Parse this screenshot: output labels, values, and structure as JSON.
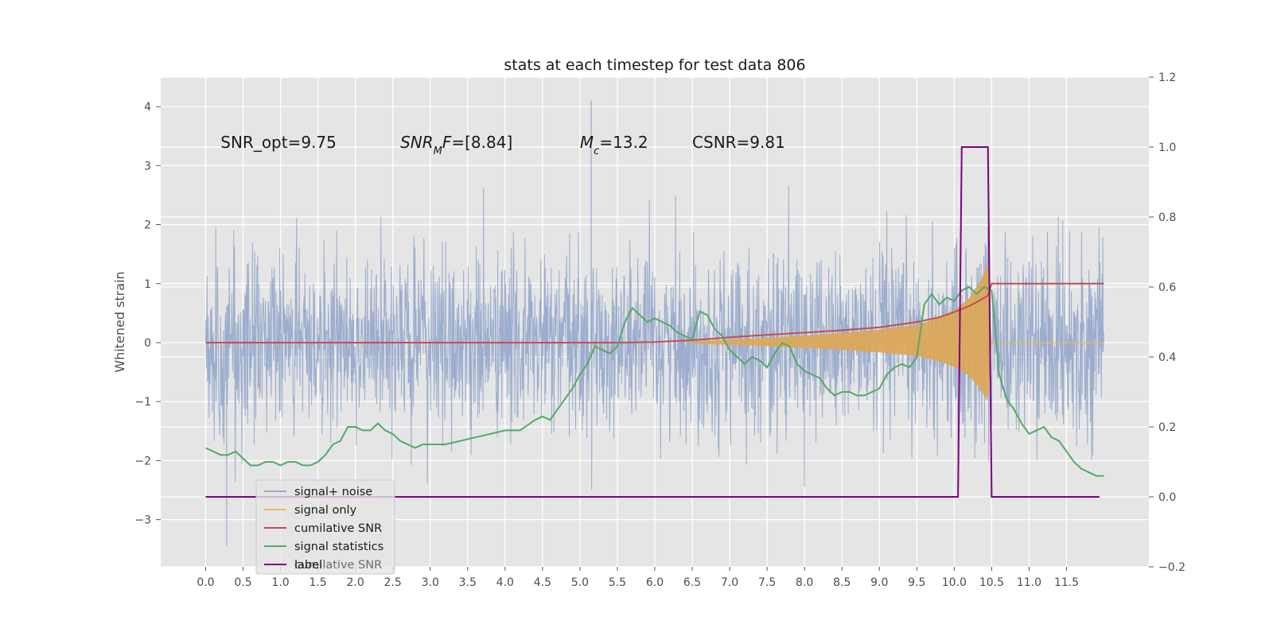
{
  "chart_data": {
    "type": "line",
    "title": "stats at each timestep for test data 806",
    "xlabel": "",
    "ylabel": "Whitened strain",
    "xlim": [
      -0.6,
      12.6
    ],
    "ylim": [
      -3.8,
      4.5
    ],
    "y2lim": [
      -0.2,
      1.2
    ],
    "grid": true,
    "x_ticks": [
      "0.0",
      "0.5",
      "1.0",
      "1.5",
      "2.0",
      "2.5",
      "3.0",
      "3.5",
      "4.0",
      "4.5",
      "5.0",
      "5.5",
      "6.0",
      "6.5",
      "7.0",
      "7.5",
      "8.0",
      "8.5",
      "9.0",
      "9.5",
      "10.0",
      "10.5",
      "11.0",
      "11.5"
    ],
    "y_ticks": [
      "4",
      "3",
      "2",
      "1",
      "0",
      "−1",
      "−2",
      "−3"
    ],
    "y2_ticks": [
      "1.2",
      "1.0",
      "0.8",
      "0.6",
      "0.4",
      "0.2",
      "0.0",
      "−0.2"
    ],
    "annotations": [
      {
        "text": "SNR_opt=9.75",
        "x": 0.2,
        "y": 3.3
      },
      {
        "text": "SNR_MF=[8.84]",
        "x": 2.6,
        "y": 3.3
      },
      {
        "text": "M_c=13.2",
        "x": 5.0,
        "y": 3.3
      },
      {
        "text": "CSNR=9.81",
        "x": 6.5,
        "y": 3.3
      }
    ],
    "legend": {
      "placement": "lower-left",
      "entries": [
        "signal+ noise",
        "signal only",
        "cumilative SNR",
        "signal statistics",
        "label"
      ],
      "ghost_text": "cumilative SNR"
    },
    "series": [
      {
        "name": "signal+ noise",
        "color": "#98aacc",
        "axis": "left",
        "x_range": [
          0.0,
          12.0
        ],
        "noise_envelope_std": 0.75,
        "max": 4.1,
        "min": -3.45
      },
      {
        "name": "signal only",
        "color": "#e8b95a",
        "fill_color": "#dca85a",
        "axis": "left",
        "x": [
          6.5,
          7.0,
          7.5,
          8.0,
          8.5,
          9.0,
          9.5,
          9.8,
          10.0,
          10.2,
          10.35,
          10.45,
          10.5
        ],
        "amplitude": [
          0.02,
          0.05,
          0.08,
          0.12,
          0.16,
          0.22,
          0.3,
          0.42,
          0.55,
          0.75,
          1.05,
          1.35,
          0.0
        ]
      },
      {
        "name": "cumilative SNR",
        "color": "#c44e52",
        "axis": "left",
        "x": [
          0.0,
          5.5,
          6.0,
          6.5,
          7.0,
          7.5,
          8.0,
          8.5,
          9.0,
          9.5,
          9.8,
          10.0,
          10.2,
          10.35,
          10.45,
          10.5,
          12.0
        ],
        "values": [
          0.0,
          0.0,
          0.01,
          0.04,
          0.09,
          0.13,
          0.17,
          0.21,
          0.26,
          0.35,
          0.43,
          0.52,
          0.62,
          0.72,
          0.8,
          1.0,
          1.0
        ]
      },
      {
        "name": "signal statistics",
        "color": "#55a868",
        "axis": "right",
        "x": [
          0.0,
          0.1,
          0.2,
          0.3,
          0.4,
          0.5,
          0.6,
          0.7,
          0.8,
          0.9,
          1.0,
          1.1,
          1.2,
          1.3,
          1.4,
          1.5,
          1.6,
          1.7,
          1.8,
          1.9,
          2.0,
          2.1,
          2.2,
          2.3,
          2.4,
          2.5,
          2.6,
          2.7,
          2.8,
          2.9,
          3.0,
          3.2,
          3.4,
          3.6,
          3.8,
          4.0,
          4.2,
          4.4,
          4.5,
          4.6,
          4.7,
          4.8,
          4.9,
          5.0,
          5.1,
          5.2,
          5.3,
          5.4,
          5.5,
          5.6,
          5.7,
          5.8,
          5.9,
          6.0,
          6.1,
          6.2,
          6.3,
          6.4,
          6.5,
          6.6,
          6.7,
          6.8,
          6.9,
          7.0,
          7.1,
          7.2,
          7.3,
          7.4,
          7.5,
          7.6,
          7.7,
          7.8,
          7.9,
          8.0,
          8.1,
          8.2,
          8.3,
          8.4,
          8.5,
          8.6,
          8.7,
          8.8,
          8.9,
          9.0,
          9.1,
          9.2,
          9.3,
          9.4,
          9.5,
          9.6,
          9.7,
          9.8,
          9.9,
          10.0,
          10.1,
          10.2,
          10.3,
          10.4,
          10.5,
          10.6,
          10.7,
          10.8,
          10.9,
          11.0,
          11.1,
          11.2,
          11.3,
          11.4,
          11.5,
          11.6,
          11.7,
          11.8,
          11.9,
          12.0
        ],
        "values": [
          0.14,
          0.13,
          0.12,
          0.12,
          0.13,
          0.11,
          0.09,
          0.09,
          0.1,
          0.1,
          0.09,
          0.1,
          0.1,
          0.09,
          0.09,
          0.1,
          0.12,
          0.15,
          0.16,
          0.2,
          0.2,
          0.19,
          0.19,
          0.21,
          0.19,
          0.18,
          0.16,
          0.15,
          0.14,
          0.15,
          0.15,
          0.15,
          0.16,
          0.17,
          0.18,
          0.19,
          0.19,
          0.22,
          0.23,
          0.22,
          0.25,
          0.28,
          0.31,
          0.35,
          0.38,
          0.43,
          0.42,
          0.41,
          0.43,
          0.5,
          0.54,
          0.52,
          0.5,
          0.51,
          0.5,
          0.49,
          0.47,
          0.46,
          0.45,
          0.53,
          0.52,
          0.48,
          0.46,
          0.42,
          0.4,
          0.38,
          0.4,
          0.39,
          0.37,
          0.41,
          0.44,
          0.43,
          0.38,
          0.36,
          0.35,
          0.34,
          0.31,
          0.29,
          0.3,
          0.3,
          0.29,
          0.29,
          0.3,
          0.31,
          0.35,
          0.37,
          0.38,
          0.37,
          0.4,
          0.55,
          0.58,
          0.55,
          0.57,
          0.56,
          0.59,
          0.6,
          0.58,
          0.6,
          0.59,
          0.35,
          0.28,
          0.25,
          0.21,
          0.18,
          0.19,
          0.2,
          0.17,
          0.16,
          0.13,
          0.1,
          0.08,
          0.07,
          0.06,
          0.06
        ]
      },
      {
        "name": "label",
        "color": "#800080",
        "axis": "right",
        "x": [
          0.0,
          10.05,
          10.1,
          10.4,
          10.45,
          10.5,
          11.94
        ],
        "values": [
          0.0,
          0.0,
          1.0,
          1.0,
          1.0,
          0.0,
          0.0
        ]
      }
    ]
  }
}
